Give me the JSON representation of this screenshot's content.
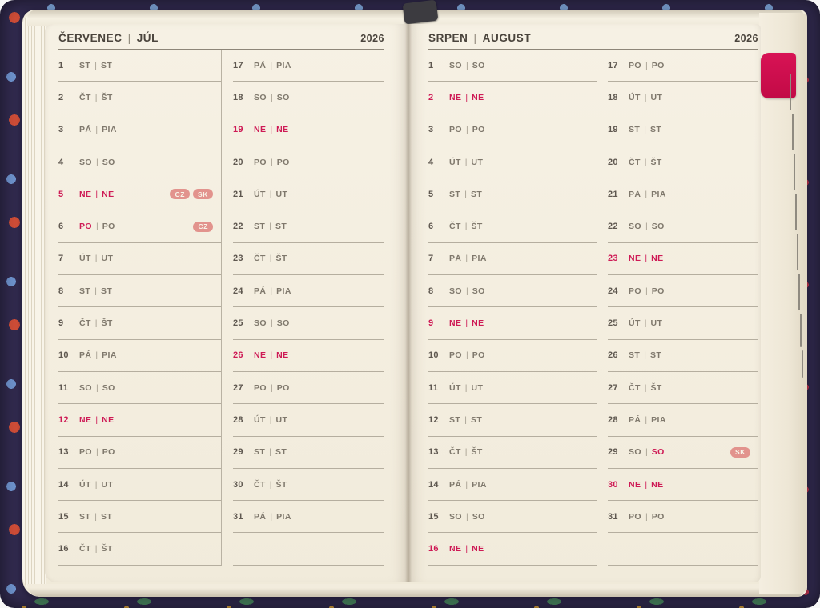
{
  "separator": "|",
  "colors": {
    "holiday_text": "#ce1a55",
    "badge_bg": "#e2938d",
    "tab_pink": "#cb0d4d",
    "paper": "#f4eee0",
    "cover_navy": "#312a4e"
  },
  "tab": {
    "type": "month-index-tab"
  },
  "pages": [
    {
      "title_primary": "ČERVENEC",
      "title_secondary": "JÚL",
      "year": "2026",
      "col1": [
        {
          "day": "1",
          "cz": "ST",
          "sk": "ST",
          "hl": "none",
          "badges": []
        },
        {
          "day": "2",
          "cz": "ČT",
          "sk": "ŠT",
          "hl": "none",
          "badges": []
        },
        {
          "day": "3",
          "cz": "PÁ",
          "sk": "PIA",
          "hl": "none",
          "badges": []
        },
        {
          "day": "4",
          "cz": "SO",
          "sk": "SO",
          "hl": "none",
          "badges": []
        },
        {
          "day": "5",
          "cz": "NE",
          "sk": "NE",
          "hl": "full",
          "badges": [
            "CZ",
            "SK"
          ]
        },
        {
          "day": "6",
          "cz": "PO",
          "sk": "PO",
          "hl": "cz",
          "badges": [
            "CZ"
          ]
        },
        {
          "day": "7",
          "cz": "ÚT",
          "sk": "UT",
          "hl": "none",
          "badges": []
        },
        {
          "day": "8",
          "cz": "ST",
          "sk": "ST",
          "hl": "none",
          "badges": []
        },
        {
          "day": "9",
          "cz": "ČT",
          "sk": "ŠT",
          "hl": "none",
          "badges": []
        },
        {
          "day": "10",
          "cz": "PÁ",
          "sk": "PIA",
          "hl": "none",
          "badges": []
        },
        {
          "day": "11",
          "cz": "SO",
          "sk": "SO",
          "hl": "none",
          "badges": []
        },
        {
          "day": "12",
          "cz": "NE",
          "sk": "NE",
          "hl": "full",
          "badges": []
        },
        {
          "day": "13",
          "cz": "PO",
          "sk": "PO",
          "hl": "none",
          "badges": []
        },
        {
          "day": "14",
          "cz": "ÚT",
          "sk": "UT",
          "hl": "none",
          "badges": []
        },
        {
          "day": "15",
          "cz": "ST",
          "sk": "ST",
          "hl": "none",
          "badges": []
        },
        {
          "day": "16",
          "cz": "ČT",
          "sk": "ŠT",
          "hl": "none",
          "badges": []
        }
      ],
      "col2": [
        {
          "day": "17",
          "cz": "PÁ",
          "sk": "PIA",
          "hl": "none",
          "badges": []
        },
        {
          "day": "18",
          "cz": "SO",
          "sk": "SO",
          "hl": "none",
          "badges": []
        },
        {
          "day": "19",
          "cz": "NE",
          "sk": "NE",
          "hl": "full",
          "badges": []
        },
        {
          "day": "20",
          "cz": "PO",
          "sk": "PO",
          "hl": "none",
          "badges": []
        },
        {
          "day": "21",
          "cz": "ÚT",
          "sk": "UT",
          "hl": "none",
          "badges": []
        },
        {
          "day": "22",
          "cz": "ST",
          "sk": "ST",
          "hl": "none",
          "badges": []
        },
        {
          "day": "23",
          "cz": "ČT",
          "sk": "ŠT",
          "hl": "none",
          "badges": []
        },
        {
          "day": "24",
          "cz": "PÁ",
          "sk": "PIA",
          "hl": "none",
          "badges": []
        },
        {
          "day": "25",
          "cz": "SO",
          "sk": "SO",
          "hl": "none",
          "badges": []
        },
        {
          "day": "26",
          "cz": "NE",
          "sk": "NE",
          "hl": "full",
          "badges": []
        },
        {
          "day": "27",
          "cz": "PO",
          "sk": "PO",
          "hl": "none",
          "badges": []
        },
        {
          "day": "28",
          "cz": "ÚT",
          "sk": "UT",
          "hl": "none",
          "badges": []
        },
        {
          "day": "29",
          "cz": "ST",
          "sk": "ST",
          "hl": "none",
          "badges": []
        },
        {
          "day": "30",
          "cz": "ČT",
          "sk": "ŠT",
          "hl": "none",
          "badges": []
        },
        {
          "day": "31",
          "cz": "PÁ",
          "sk": "PIA",
          "hl": "none",
          "badges": []
        }
      ]
    },
    {
      "title_primary": "SRPEN",
      "title_secondary": "AUGUST",
      "year": "2026",
      "col1": [
        {
          "day": "1",
          "cz": "SO",
          "sk": "SO",
          "hl": "none",
          "badges": []
        },
        {
          "day": "2",
          "cz": "NE",
          "sk": "NE",
          "hl": "full",
          "badges": []
        },
        {
          "day": "3",
          "cz": "PO",
          "sk": "PO",
          "hl": "none",
          "badges": []
        },
        {
          "day": "4",
          "cz": "ÚT",
          "sk": "UT",
          "hl": "none",
          "badges": []
        },
        {
          "day": "5",
          "cz": "ST",
          "sk": "ST",
          "hl": "none",
          "badges": []
        },
        {
          "day": "6",
          "cz": "ČT",
          "sk": "ŠT",
          "hl": "none",
          "badges": []
        },
        {
          "day": "7",
          "cz": "PÁ",
          "sk": "PIA",
          "hl": "none",
          "badges": []
        },
        {
          "day": "8",
          "cz": "SO",
          "sk": "SO",
          "hl": "none",
          "badges": []
        },
        {
          "day": "9",
          "cz": "NE",
          "sk": "NE",
          "hl": "full",
          "badges": []
        },
        {
          "day": "10",
          "cz": "PO",
          "sk": "PO",
          "hl": "none",
          "badges": []
        },
        {
          "day": "11",
          "cz": "ÚT",
          "sk": "UT",
          "hl": "none",
          "badges": []
        },
        {
          "day": "12",
          "cz": "ST",
          "sk": "ST",
          "hl": "none",
          "badges": []
        },
        {
          "day": "13",
          "cz": "ČT",
          "sk": "ŠT",
          "hl": "none",
          "badges": []
        },
        {
          "day": "14",
          "cz": "PÁ",
          "sk": "PIA",
          "hl": "none",
          "badges": []
        },
        {
          "day": "15",
          "cz": "SO",
          "sk": "SO",
          "hl": "none",
          "badges": []
        },
        {
          "day": "16",
          "cz": "NE",
          "sk": "NE",
          "hl": "full",
          "badges": []
        }
      ],
      "col2": [
        {
          "day": "17",
          "cz": "PO",
          "sk": "PO",
          "hl": "none",
          "badges": []
        },
        {
          "day": "18",
          "cz": "ÚT",
          "sk": "UT",
          "hl": "none",
          "badges": []
        },
        {
          "day": "19",
          "cz": "ST",
          "sk": "ST",
          "hl": "none",
          "badges": []
        },
        {
          "day": "20",
          "cz": "ČT",
          "sk": "ŠT",
          "hl": "none",
          "badges": []
        },
        {
          "day": "21",
          "cz": "PÁ",
          "sk": "PIA",
          "hl": "none",
          "badges": []
        },
        {
          "day": "22",
          "cz": "SO",
          "sk": "SO",
          "hl": "none",
          "badges": []
        },
        {
          "day": "23",
          "cz": "NE",
          "sk": "NE",
          "hl": "full",
          "badges": []
        },
        {
          "day": "24",
          "cz": "PO",
          "sk": "PO",
          "hl": "none",
          "badges": []
        },
        {
          "day": "25",
          "cz": "ÚT",
          "sk": "UT",
          "hl": "none",
          "badges": []
        },
        {
          "day": "26",
          "cz": "ST",
          "sk": "ST",
          "hl": "none",
          "badges": []
        },
        {
          "day": "27",
          "cz": "ČT",
          "sk": "ŠT",
          "hl": "none",
          "badges": []
        },
        {
          "day": "28",
          "cz": "PÁ",
          "sk": "PIA",
          "hl": "none",
          "badges": []
        },
        {
          "day": "29",
          "cz": "SO",
          "sk": "SO",
          "hl": "sk",
          "badges": [
            "SK"
          ]
        },
        {
          "day": "30",
          "cz": "NE",
          "sk": "NE",
          "hl": "full",
          "badges": []
        },
        {
          "day": "31",
          "cz": "PO",
          "sk": "PO",
          "hl": "none",
          "badges": []
        }
      ]
    }
  ]
}
